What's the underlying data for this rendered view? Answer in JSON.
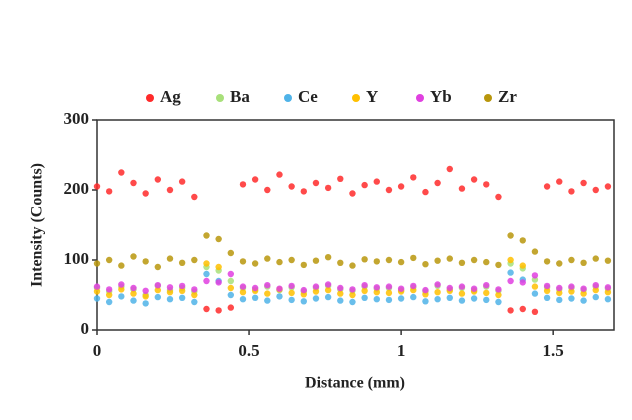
{
  "chart_data": {
    "type": "scatter",
    "x_label": "Distance (mm)",
    "y_label": "Intensity (Counts)",
    "x": [
      0,
      0.04,
      0.08,
      0.12,
      0.16,
      0.2,
      0.24,
      0.28,
      0.32,
      0.36,
      0.4,
      0.44,
      0.48,
      0.52,
      0.56,
      0.6,
      0.64,
      0.68,
      0.72,
      0.76,
      0.8,
      0.84,
      0.88,
      0.92,
      0.96,
      1,
      1.04,
      1.08,
      1.12,
      1.16,
      1.2,
      1.24,
      1.28,
      1.32,
      1.36,
      1.4,
      1.44,
      1.48,
      1.52,
      1.56,
      1.6,
      1.64,
      1.68
    ],
    "series": [
      {
        "name": "Ag",
        "color": "#ff2a2a",
        "values": [
          205,
          198,
          225,
          210,
          195,
          215,
          200,
          212,
          190,
          30,
          28,
          32,
          208,
          215,
          200,
          222,
          205,
          198,
          210,
          203,
          216,
          195,
          207,
          212,
          200,
          205,
          218,
          197,
          210,
          230,
          202,
          215,
          208,
          190,
          28,
          30,
          26,
          205,
          212,
          198,
          210,
          200,
          205
        ]
      },
      {
        "name": "Ba",
        "color": "#a8e07a",
        "values": [
          60,
          55,
          62,
          58,
          50,
          63,
          57,
          60,
          55,
          90,
          85,
          70,
          60,
          58,
          62,
          57,
          61,
          55,
          60,
          63,
          58,
          56,
          62,
          59,
          60,
          57,
          61,
          55,
          63,
          58,
          60,
          57,
          62,
          56,
          95,
          88,
          72,
          61,
          58,
          60,
          57,
          62,
          59
        ]
      },
      {
        "name": "Ce",
        "color": "#4fb3e8",
        "values": [
          45,
          40,
          48,
          42,
          38,
          47,
          44,
          46,
          40,
          80,
          70,
          50,
          44,
          46,
          42,
          48,
          43,
          41,
          45,
          47,
          42,
          40,
          46,
          44,
          43,
          45,
          47,
          41,
          44,
          46,
          42,
          45,
          43,
          40,
          82,
          72,
          52,
          46,
          43,
          45,
          42,
          47,
          44
        ]
      },
      {
        "name": "Y",
        "color": "#ffc000",
        "values": [
          55,
          50,
          58,
          52,
          48,
          57,
          54,
          56,
          50,
          95,
          90,
          60,
          54,
          56,
          52,
          58,
          53,
          51,
          55,
          57,
          52,
          50,
          56,
          54,
          53,
          55,
          57,
          51,
          54,
          56,
          52,
          55,
          53,
          50,
          100,
          92,
          62,
          56,
          53,
          55,
          52,
          57,
          54
        ]
      },
      {
        "name": "Yb",
        "color": "#e040e0",
        "values": [
          62,
          58,
          65,
          60,
          56,
          64,
          61,
          63,
          58,
          70,
          68,
          80,
          62,
          60,
          64,
          59,
          63,
          57,
          62,
          65,
          60,
          58,
          64,
          61,
          62,
          59,
          63,
          57,
          65,
          60,
          62,
          59,
          64,
          58,
          70,
          68,
          78,
          63,
          60,
          62,
          59,
          64,
          61
        ]
      },
      {
        "name": "Zr",
        "color": "#b8960c",
        "values": [
          95,
          100,
          92,
          105,
          98,
          90,
          102,
          96,
          100,
          135,
          130,
          110,
          98,
          95,
          102,
          97,
          100,
          93,
          99,
          104,
          96,
          92,
          101,
          98,
          100,
          97,
          103,
          94,
          99,
          102,
          96,
          100,
          97,
          93,
          135,
          128,
          112,
          98,
          95,
          100,
          96,
          102,
          99
        ]
      }
    ],
    "xlim": [
      0,
      1.7
    ],
    "ylim": [
      0,
      300
    ],
    "xticks": [
      0,
      0.5,
      1,
      1.5
    ],
    "yticks": [
      0,
      100,
      200,
      300
    ],
    "legend": "top"
  }
}
